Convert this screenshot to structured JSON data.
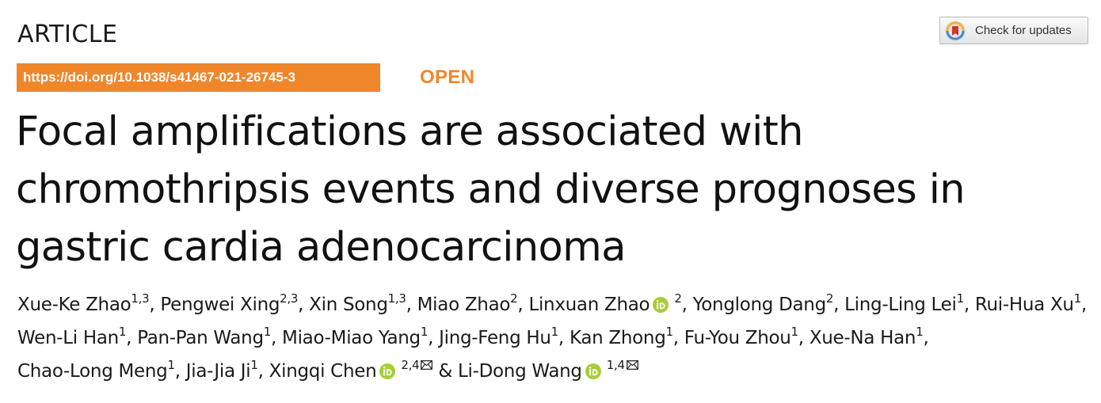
{
  "header": {
    "article_label": "ARTICLE",
    "updates_button_label": "Check for updates",
    "updates_icon": "crossmark-icon",
    "doi": "https://doi.org/10.1038/s41467-021-26745-3",
    "open_label": "OPEN",
    "accent_color": "#f0862a"
  },
  "title": "Focal amplifications are associated with chromothripsis events and diverse prognoses in gastric cardia adenocarcinoma",
  "authors": [
    {
      "name": "Xue-Ke Zhao",
      "aff": "1,3"
    },
    {
      "name": "Pengwei Xing",
      "aff": "2,3"
    },
    {
      "name": "Xin Song",
      "aff": "1,3"
    },
    {
      "name": "Miao Zhao",
      "aff": "2"
    },
    {
      "name": "Linxuan Zhao",
      "aff": "2",
      "orcid": true
    },
    {
      "name": "Yonglong Dang",
      "aff": "2"
    },
    {
      "name": "Ling-Ling Lei",
      "aff": "1"
    },
    {
      "name": "Rui-Hua Xu",
      "aff": "1"
    },
    {
      "name": "Wen-Li Han",
      "aff": "1"
    },
    {
      "name": "Pan-Pan Wang",
      "aff": "1"
    },
    {
      "name": "Miao-Miao Yang",
      "aff": "1"
    },
    {
      "name": "Jing-Feng Hu",
      "aff": "1"
    },
    {
      "name": "Kan Zhong",
      "aff": "1"
    },
    {
      "name": "Fu-You Zhou",
      "aff": "1"
    },
    {
      "name": "Xue-Na Han",
      "aff": "1"
    },
    {
      "name": "Chao-Long Meng",
      "aff": "1"
    },
    {
      "name": "Jia-Jia Ji",
      "aff": "1"
    },
    {
      "name": "Xingqi Chen",
      "aff": "2,4",
      "orcid": true,
      "corresponding": true
    },
    {
      "name": "Li-Dong Wang",
      "aff": "1,4",
      "orcid": true,
      "corresponding": true
    }
  ],
  "author_separator": ", ",
  "last_author_separator": " & ",
  "icons": {
    "orcid": "orcid-icon",
    "mail": "mail-icon",
    "orcid_color": "#a6ce39"
  }
}
